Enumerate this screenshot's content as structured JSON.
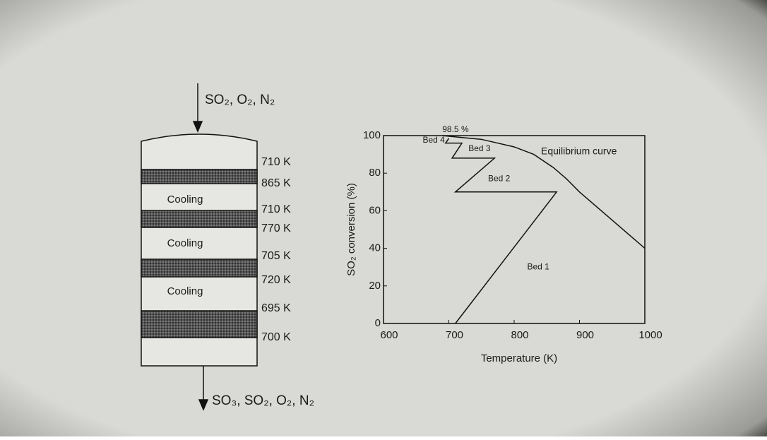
{
  "diagram": {
    "inlet": "SO₂, O₂, N₂",
    "outlet": "SO₃, SO₂, O₂, N₂",
    "cooling": [
      "Cooling",
      "Cooling",
      "Cooling"
    ],
    "temperatures": [
      "710 K",
      "865 K",
      "710 K",
      "770 K",
      "705 K",
      "720 K",
      "695 K",
      "700 K"
    ]
  },
  "chart_data": {
    "type": "line",
    "xlabel": "Temperature (K)",
    "ylabel": "SO₂ conversion (%)",
    "xlim": [
      600,
      1000
    ],
    "xticks": [
      600,
      700,
      800,
      900,
      1000
    ],
    "ylim": [
      0,
      100
    ],
    "yticks": [
      0,
      20,
      40,
      60,
      80,
      100
    ],
    "series": [
      {
        "color": "#111111",
        "x": [
          710,
          865,
          710,
          770,
          705,
          720,
          695,
          700
        ],
        "values": [
          0,
          70,
          70,
          88,
          88,
          96,
          96,
          98.5
        ]
      },
      {
        "name": "Equilibrium curve",
        "color": "#111111",
        "x": [
          690,
          750,
          800,
          830,
          860,
          880,
          900,
          950,
          1000
        ],
        "values": [
          100,
          98,
          94,
          90,
          83,
          77,
          70,
          55,
          40
        ]
      }
    ],
    "annotations": [
      {
        "text": "Bed 1",
        "x": 820,
        "y": 30
      },
      {
        "text": "Bed 2",
        "x": 760,
        "y": 77
      },
      {
        "text": "Bed 3",
        "x": 730,
        "y": 93
      },
      {
        "text": "Bed 4",
        "x": 660,
        "y": 97.5
      },
      {
        "text": "98.5 %",
        "x": 690,
        "y": 103
      }
    ]
  }
}
